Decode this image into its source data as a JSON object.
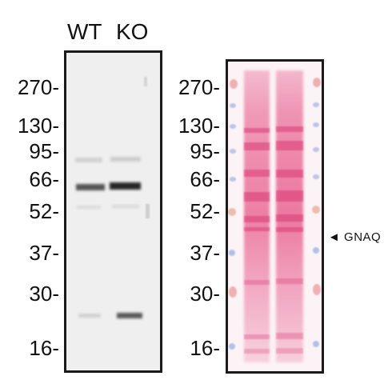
{
  "lanes": {
    "wt": "WT",
    "ko": "KO"
  },
  "markers": [
    "270-",
    "130-",
    "95-",
    "66-",
    "52-",
    "37-",
    "30-",
    "16-"
  ],
  "annotation": {
    "arrow": "◄",
    "label": "GNAQ"
  },
  "colors": {
    "blot_bg": "#efefef",
    "band": "#2a2a2a",
    "ponceau_bg": "#fbf3f6",
    "ponceau_lane": "#e8578a",
    "ladder_blue": "#7a98d8",
    "ladder_red": "#e57a7a"
  }
}
